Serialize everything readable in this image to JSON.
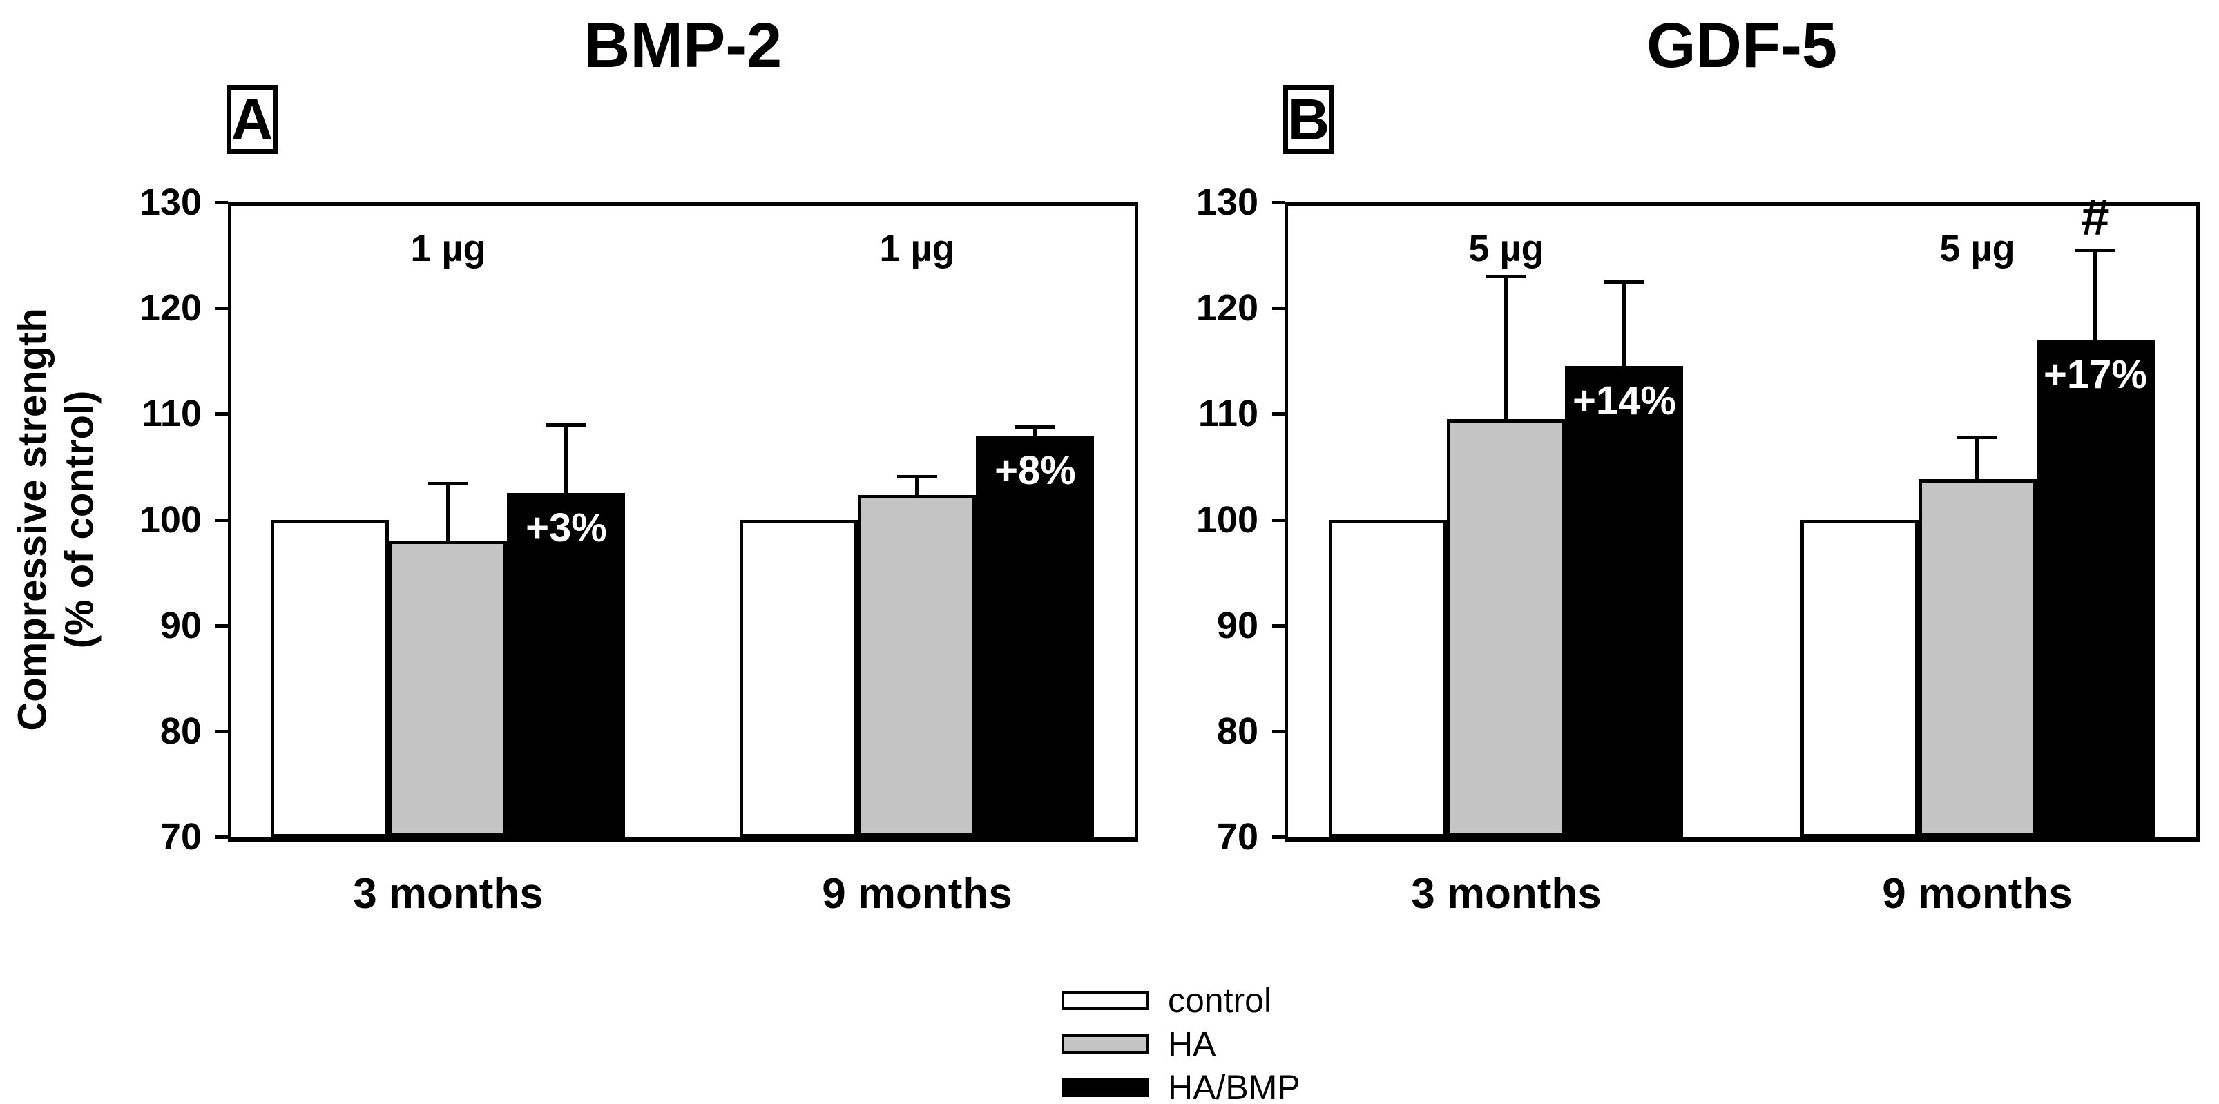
{
  "figure": {
    "y_axis_label_lines": [
      "Compressive strength",
      "(% of control)"
    ],
    "background_color": "#ffffff",
    "text_color": "#000000"
  },
  "legend": {
    "position": "bottom-center",
    "items": [
      {
        "label": "control",
        "color": "#ffffff"
      },
      {
        "label": "HA",
        "color": "#c4c4c4"
      },
      {
        "label": "HA/BMP",
        "color": "#000000"
      }
    ]
  },
  "chart_data": [
    {
      "type": "bar",
      "panel_letter": "A",
      "title": "BMP-2",
      "categories": [
        "3 months",
        "9 months"
      ],
      "dose_labels": [
        "1 µg",
        "1 µg"
      ],
      "ylim": [
        70,
        130
      ],
      "y_ticks": [
        70,
        80,
        90,
        100,
        110,
        120,
        130
      ],
      "ylabel": "Compressive strength (% of control)",
      "grid": false,
      "series": [
        {
          "name": "control",
          "color": "#ffffff",
          "values": [
            100,
            100
          ],
          "errors_up": [
            0,
            0
          ]
        },
        {
          "name": "HA",
          "color": "#c4c4c4",
          "values": [
            98,
            102.3
          ],
          "errors_up": [
            5.4,
            1.8
          ]
        },
        {
          "name": "HA/BMP",
          "color": "#000000",
          "values": [
            102.5,
            107.9
          ],
          "errors_up": [
            6.5,
            0.9
          ]
        }
      ],
      "bar_labels": [
        {
          "category_index": 0,
          "series": "HA/BMP",
          "text": "+3%",
          "color": "#ffffff"
        },
        {
          "category_index": 1,
          "series": "HA/BMP",
          "text": "+8%",
          "color": "#ffffff"
        }
      ],
      "significance_markers": []
    },
    {
      "type": "bar",
      "panel_letter": "B",
      "title": "GDF-5",
      "categories": [
        "3 months",
        "9 months"
      ],
      "dose_labels": [
        "5 µg",
        "5 µg"
      ],
      "ylim": [
        70,
        130
      ],
      "y_ticks": [
        70,
        80,
        90,
        100,
        110,
        120,
        130
      ],
      "ylabel": "Compressive strength (% of control)",
      "grid": false,
      "series": [
        {
          "name": "control",
          "color": "#ffffff",
          "values": [
            100,
            100
          ],
          "errors_up": [
            0,
            0
          ]
        },
        {
          "name": "HA",
          "color": "#c4c4c4",
          "values": [
            109.5,
            103.8
          ],
          "errors_up": [
            13.5,
            4.0
          ]
        },
        {
          "name": "HA/BMP",
          "color": "#000000",
          "values": [
            114.5,
            117.0
          ],
          "errors_up": [
            8.0,
            8.5
          ]
        }
      ],
      "bar_labels": [
        {
          "category_index": 0,
          "series": "HA/BMP",
          "text": "+14%",
          "color": "#ffffff"
        },
        {
          "category_index": 1,
          "series": "HA/BMP",
          "text": "+17%",
          "color": "#ffffff"
        }
      ],
      "significance_markers": [
        {
          "category_index": 1,
          "series": "HA/BMP",
          "symbol": "#"
        }
      ]
    }
  ]
}
